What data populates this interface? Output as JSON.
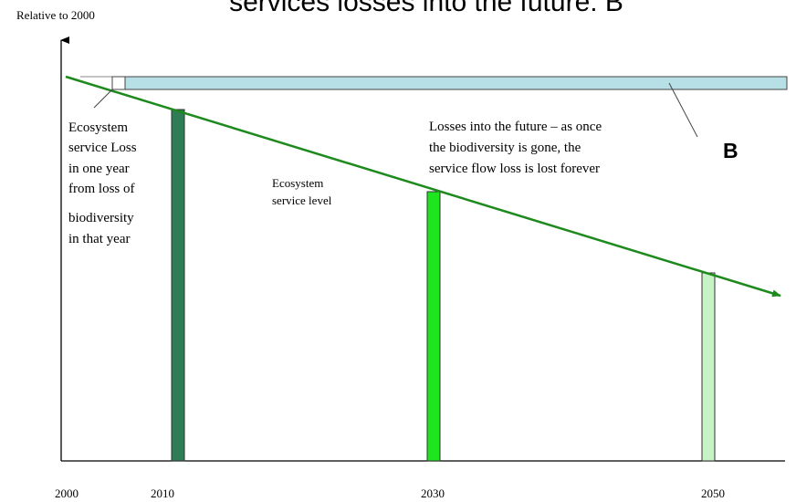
{
  "title": "services losses into the future: B",
  "y_axis_label": "Relative to 2000",
  "panel_label": "B",
  "x_ticks": [
    "2000",
    "2010",
    "2030",
    "2050"
  ],
  "annotations": {
    "annual_loss": [
      "Ecosystem",
      "service Loss",
      "in one year",
      "from loss of",
      "biodiversity",
      "in that year"
    ],
    "service_level": [
      "Ecosystem",
      "service level"
    ],
    "future_losses": [
      "Losses into the future – as once",
      "the biodiversity is gone, the",
      "service flow loss is lost forever"
    ]
  },
  "colors": {
    "trend_line": "#1e8a1e",
    "bar_2010": "#2e7d55",
    "bar_2030": "#1ee61e",
    "bar_2050": "#c6f2c6",
    "future_loss_band": "#b7dfe6"
  }
}
